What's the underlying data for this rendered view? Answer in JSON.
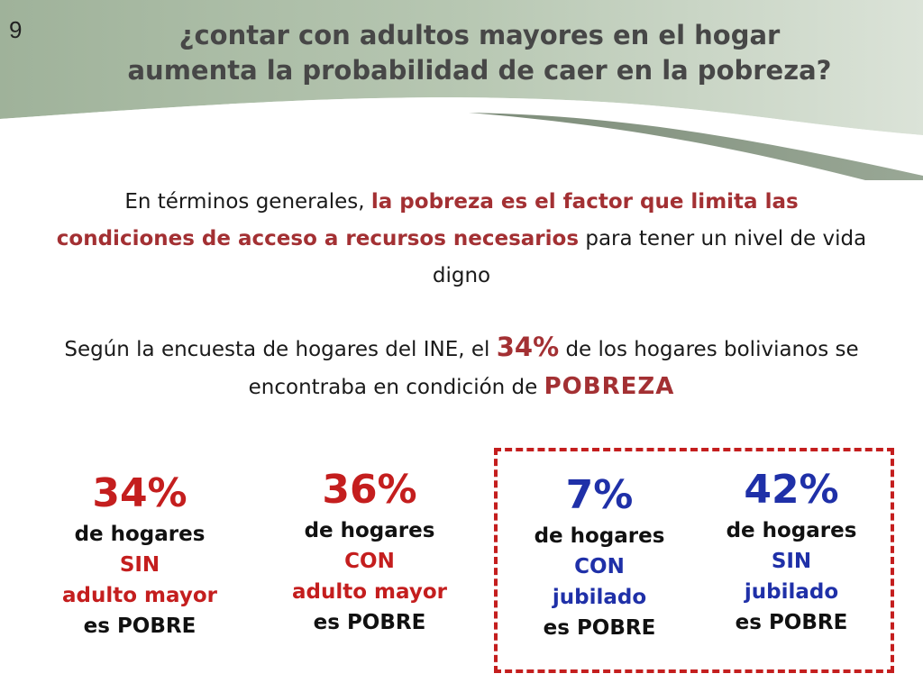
{
  "slide": {
    "number": "9",
    "title_line1": "¿contar con adultos mayores en el hogar",
    "title_line2": "aumenta la probabilidad de caer en la pobreza?"
  },
  "paragraph1": {
    "text_before": "En términos generales, ",
    "highlight": "la pobreza es el factor que limita las condiciones de acceso a recursos necesarios",
    "text_after": " para tener un nivel de vida digno"
  },
  "paragraph2": {
    "text_before": "Según la encuesta de hogares del INE, el ",
    "percent": "34%",
    "text_middle": " de los hogares bolivianos se encontraba en condición de ",
    "keyword": "POBREZA"
  },
  "stats": [
    {
      "percent": "34%",
      "line1": "de hogares",
      "line2": "SIN",
      "line3": "adulto mayor",
      "line4": "es POBRE"
    },
    {
      "percent": "36%",
      "line1": "de hogares",
      "line2": "CON",
      "line3": "adulto mayor",
      "line4": "es POBRE"
    },
    {
      "percent": "7%",
      "line1": "de hogares",
      "line2": "CON",
      "line3": "jubilado",
      "line4": "es POBRE"
    },
    {
      "percent": "42%",
      "line1": "de hogares",
      "line2": "SIN",
      "line3": "jubilado",
      "line4": "es POBRE"
    }
  ],
  "colors": {
    "accent_red": "#c41e1e",
    "highlight_red": "#a33033",
    "accent_blue": "#1f30a8",
    "header_green": "#a9bca4"
  }
}
